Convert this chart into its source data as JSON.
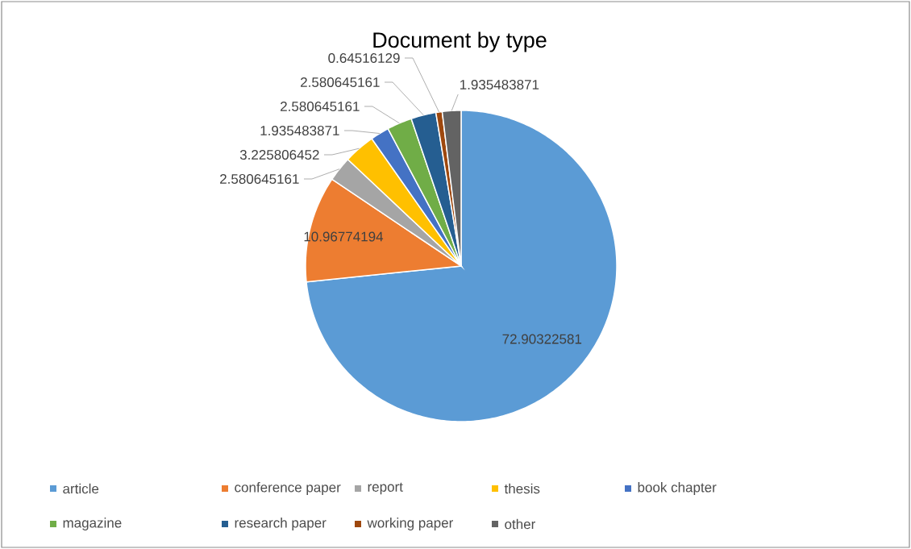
{
  "chart_data": {
    "type": "pie",
    "title": "Document by type",
    "categories": [
      "article",
      "conference paper",
      "report",
      "thesis",
      "book chapter",
      "magazine",
      "research paper",
      "working paper",
      "other"
    ],
    "values": [
      72.90322581,
      10.96774194,
      2.580645161,
      3.225806452,
      1.935483871,
      2.580645161,
      2.580645161,
      0.64516129,
      1.935483871
    ],
    "colors": [
      "#5b9bd5",
      "#ed7d31",
      "#a5a5a5",
      "#ffc000",
      "#4472c4",
      "#70ad47",
      "#255e91",
      "#9e480e",
      "#636363"
    ],
    "data_labels": true,
    "legend": "bottom"
  }
}
